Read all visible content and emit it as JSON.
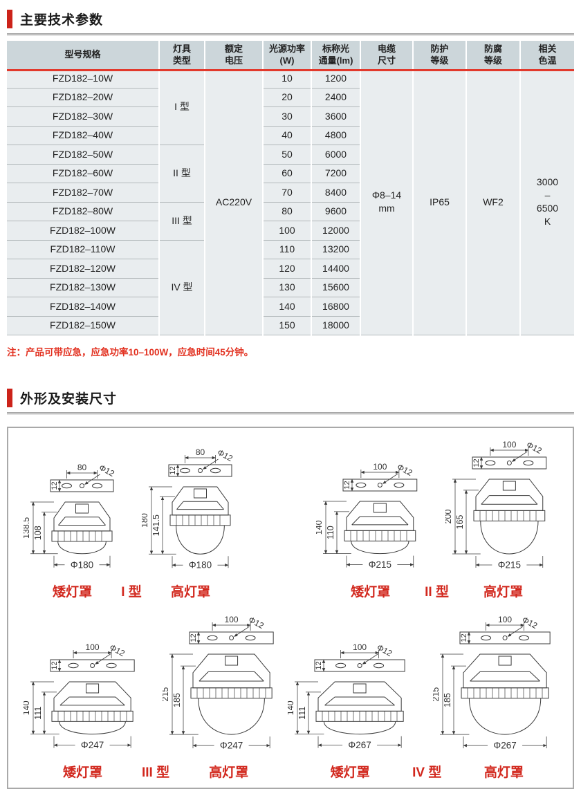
{
  "colors": {
    "accent_red": "#cc231a",
    "table_header_bg": "#ccd6da",
    "table_row_bg": "#e9edef",
    "table_red_line": "#e2392c",
    "note_red": "#e2301f",
    "label_red": "#d2281e"
  },
  "section1": {
    "title": "主要技术参数"
  },
  "table": {
    "headers": [
      {
        "lines": [
          "型号规格"
        ]
      },
      {
        "lines": [
          "灯具",
          "类型"
        ]
      },
      {
        "lines": [
          "额定",
          "电压"
        ]
      },
      {
        "lines": [
          "光源功率",
          "(W)"
        ]
      },
      {
        "lines": [
          "标称光",
          "通量(lm)"
        ]
      },
      {
        "lines": [
          "电缆",
          "尺寸"
        ]
      },
      {
        "lines": [
          "防护",
          "等级"
        ]
      },
      {
        "lines": [
          "防腐",
          "等级"
        ]
      },
      {
        "lines": [
          "相关",
          "色温"
        ]
      }
    ],
    "rows": [
      {
        "model": "FZD182–10W",
        "power": "10",
        "flux": "1200"
      },
      {
        "model": "FZD182–20W",
        "power": "20",
        "flux": "2400"
      },
      {
        "model": "FZD182–30W",
        "power": "30",
        "flux": "3600"
      },
      {
        "model": "FZD182–40W",
        "power": "40",
        "flux": "4800"
      },
      {
        "model": "FZD182–50W",
        "power": "50",
        "flux": "6000"
      },
      {
        "model": "FZD182–60W",
        "power": "60",
        "flux": "7200"
      },
      {
        "model": "FZD182–70W",
        "power": "70",
        "flux": "8400"
      },
      {
        "model": "FZD182–80W",
        "power": "80",
        "flux": "9600"
      },
      {
        "model": "FZD182–100W",
        "power": "100",
        "flux": "12000"
      },
      {
        "model": "FZD182–110W",
        "power": "110",
        "flux": "13200"
      },
      {
        "model": "FZD182–120W",
        "power": "120",
        "flux": "14400"
      },
      {
        "model": "FZD182–130W",
        "power": "130",
        "flux": "15600"
      },
      {
        "model": "FZD182–140W",
        "power": "140",
        "flux": "16800"
      },
      {
        "model": "FZD182–150W",
        "power": "150",
        "flux": "18000"
      }
    ],
    "type_groups": [
      {
        "label": "I 型",
        "span": 4
      },
      {
        "label": "II 型",
        "span": 3
      },
      {
        "label": "III 型",
        "span": 2
      },
      {
        "label": "IV 型",
        "span": 5
      }
    ],
    "merged": {
      "voltage": [
        "AC220V"
      ],
      "cable": [
        "Φ8–14",
        "mm"
      ],
      "protection": [
        "IP65"
      ],
      "anticorrosion": [
        "WF2"
      ],
      "color_temp": [
        "3000",
        "–",
        "6500",
        "K"
      ]
    }
  },
  "note": "注：产品可带应急，应急功率10–100W，应急时间45分钟。",
  "section2": {
    "title": "外形及安装尺寸"
  },
  "diagrams": [
    {
      "type_label": "I 型",
      "low": {
        "label": "矮灯罩",
        "mount_span": "80",
        "mount_h": "12",
        "hole": "Φ12",
        "outer_h": "138.5",
        "inner_h": "108",
        "diameter": "Φ180"
      },
      "high": {
        "label": "高灯罩",
        "mount_span": "80",
        "mount_h": "12",
        "hole": "Φ12",
        "outer_h": "180",
        "inner_h": "141.5",
        "diameter": "Φ180"
      }
    },
    {
      "type_label": "II 型",
      "low": {
        "label": "矮灯罩",
        "mount_span": "100",
        "mount_h": "12",
        "hole": "Φ12",
        "outer_h": "140",
        "inner_h": "110",
        "diameter": "Φ215"
      },
      "high": {
        "label": "高灯罩",
        "mount_span": "100",
        "mount_h": "12",
        "hole": "Φ12",
        "outer_h": "200",
        "inner_h": "165",
        "diameter": "Φ215"
      }
    },
    {
      "type_label": "III 型",
      "low": {
        "label": "矮灯罩",
        "mount_span": "100",
        "mount_h": "12",
        "hole": "Φ12",
        "outer_h": "140",
        "inner_h": "111",
        "diameter": "Φ247"
      },
      "high": {
        "label": "高灯罩",
        "mount_span": "100",
        "mount_h": "12",
        "hole": "Φ12",
        "outer_h": "215",
        "inner_h": "185",
        "diameter": "Φ247"
      }
    },
    {
      "type_label": "IV 型",
      "low": {
        "label": "矮灯罩",
        "mount_span": "100",
        "mount_h": "12",
        "hole": "Φ12",
        "outer_h": "140",
        "inner_h": "111",
        "diameter": "Φ267"
      },
      "high": {
        "label": "高灯罩",
        "mount_span": "100",
        "mount_h": "12",
        "hole": "Φ12",
        "outer_h": "215",
        "inner_h": "185",
        "diameter": "Φ267"
      }
    }
  ]
}
